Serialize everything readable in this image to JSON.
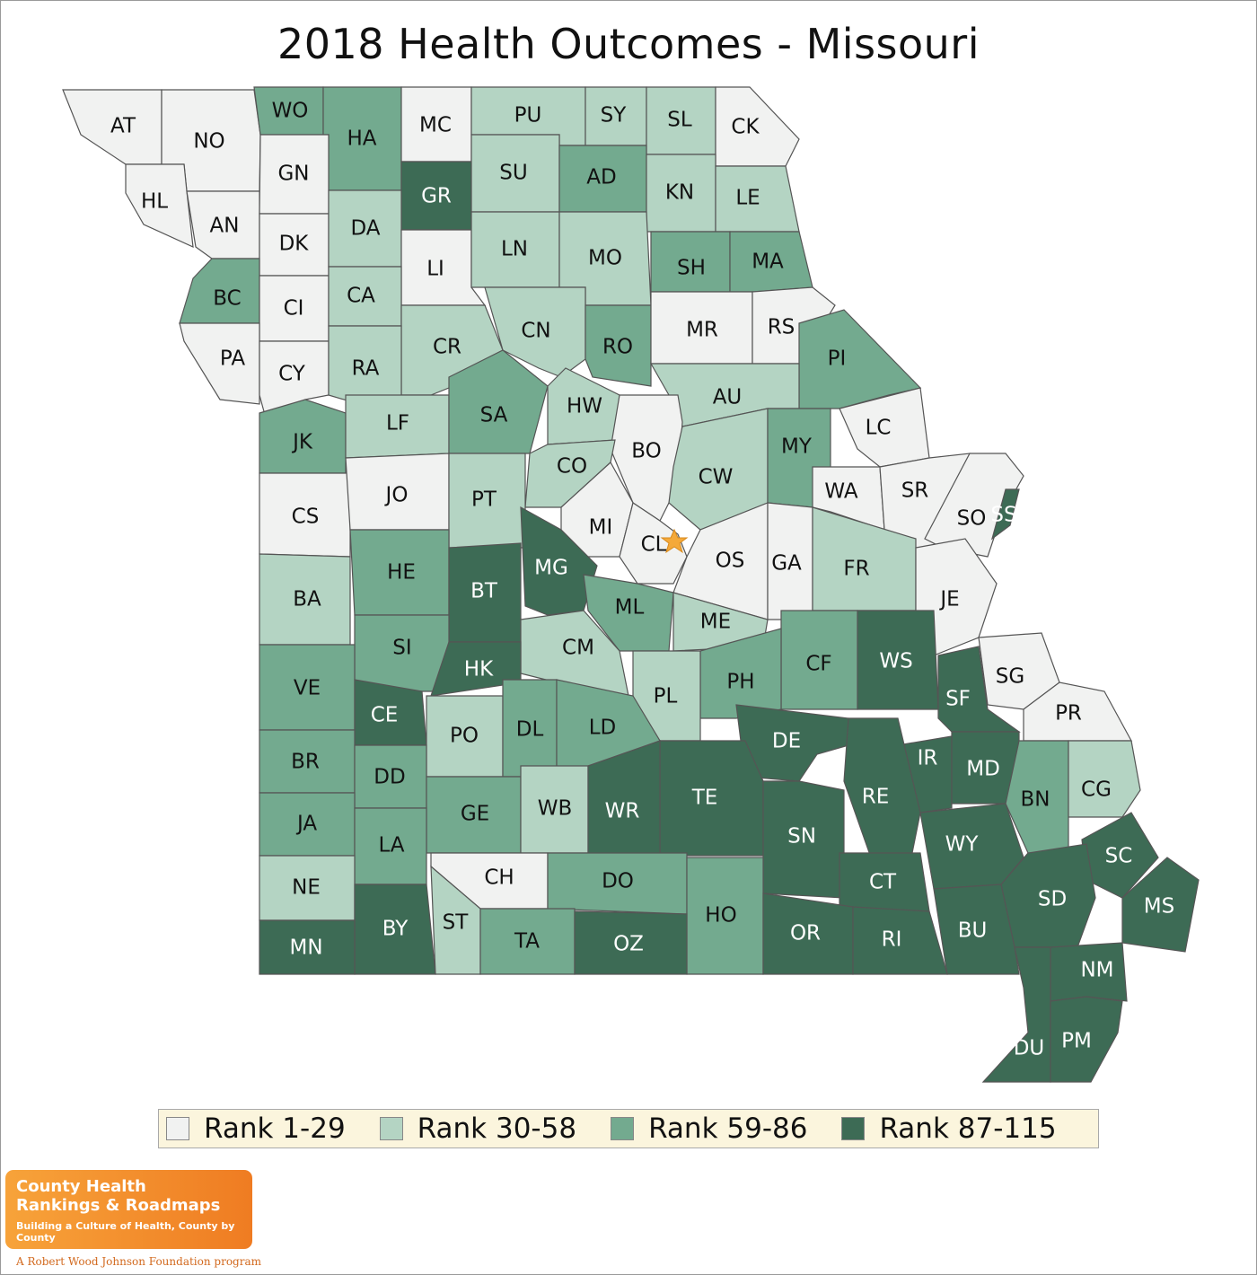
{
  "title": "2018 Health Outcomes - Missouri",
  "legend": [
    {
      "label": "Rank 1-29",
      "color": "#f1f2f1"
    },
    {
      "label": "Rank 30-58",
      "color": "#b4d4c3"
    },
    {
      "label": "Rank 59-86",
      "color": "#73aa8f"
    },
    {
      "label": "Rank 87-115",
      "color": "#3d6b55"
    }
  ],
  "star": {
    "marker": "state capital star",
    "color": "#f4a93a",
    "county": "CL"
  },
  "logo": {
    "line1": "County Health",
    "line2": "Rankings & Roadmaps",
    "tagline": "Building a Culture of Health, County by County",
    "footer": "A Robert Wood Johnson Foundation program"
  },
  "counties": [
    {
      "code": "AT",
      "rank_group": 1
    },
    {
      "code": "NO",
      "rank_group": 1
    },
    {
      "code": "WO",
      "rank_group": 3
    },
    {
      "code": "HA",
      "rank_group": 3
    },
    {
      "code": "MC",
      "rank_group": 1
    },
    {
      "code": "PU",
      "rank_group": 2
    },
    {
      "code": "SY",
      "rank_group": 2
    },
    {
      "code": "SL",
      "rank_group": 2
    },
    {
      "code": "CK",
      "rank_group": 1
    },
    {
      "code": "HL",
      "rank_group": 1
    },
    {
      "code": "AN",
      "rank_group": 1
    },
    {
      "code": "GN",
      "rank_group": 1
    },
    {
      "code": "GR",
      "rank_group": 4
    },
    {
      "code": "SU",
      "rank_group": 2
    },
    {
      "code": "AD",
      "rank_group": 3
    },
    {
      "code": "KN",
      "rank_group": 2
    },
    {
      "code": "LE",
      "rank_group": 2
    },
    {
      "code": "DK",
      "rank_group": 1
    },
    {
      "code": "DA",
      "rank_group": 2
    },
    {
      "code": "LI",
      "rank_group": 1
    },
    {
      "code": "LN",
      "rank_group": 2
    },
    {
      "code": "MO",
      "rank_group": 2
    },
    {
      "code": "SH",
      "rank_group": 3
    },
    {
      "code": "MA",
      "rank_group": 3
    },
    {
      "code": "BC",
      "rank_group": 3
    },
    {
      "code": "CI",
      "rank_group": 1
    },
    {
      "code": "CA",
      "rank_group": 2
    },
    {
      "code": "CR",
      "rank_group": 2
    },
    {
      "code": "CN",
      "rank_group": 2
    },
    {
      "code": "RO",
      "rank_group": 3
    },
    {
      "code": "MR",
      "rank_group": 1
    },
    {
      "code": "RS",
      "rank_group": 1
    },
    {
      "code": "PA",
      "rank_group": 1
    },
    {
      "code": "CY",
      "rank_group": 1
    },
    {
      "code": "RA",
      "rank_group": 2
    },
    {
      "code": "PI",
      "rank_group": 3
    },
    {
      "code": "JK",
      "rank_group": 3
    },
    {
      "code": "LF",
      "rank_group": 2
    },
    {
      "code": "SA",
      "rank_group": 3
    },
    {
      "code": "HW",
      "rank_group": 2
    },
    {
      "code": "AU",
      "rank_group": 2
    },
    {
      "code": "LC",
      "rank_group": 1
    },
    {
      "code": "BO",
      "rank_group": 1
    },
    {
      "code": "CW",
      "rank_group": 2
    },
    {
      "code": "MY",
      "rank_group": 3
    },
    {
      "code": "CO",
      "rank_group": 2
    },
    {
      "code": "CS",
      "rank_group": 1
    },
    {
      "code": "JO",
      "rank_group": 1
    },
    {
      "code": "PT",
      "rank_group": 2
    },
    {
      "code": "WA",
      "rank_group": 1
    },
    {
      "code": "SR",
      "rank_group": 1
    },
    {
      "code": "SO",
      "rank_group": 1
    },
    {
      "code": "SS",
      "rank_group": 4
    },
    {
      "code": "MI",
      "rank_group": 1
    },
    {
      "code": "CL",
      "rank_group": 1
    },
    {
      "code": "OS",
      "rank_group": 1
    },
    {
      "code": "GA",
      "rank_group": 1
    },
    {
      "code": "FR",
      "rank_group": 2
    },
    {
      "code": "BA",
      "rank_group": 2
    },
    {
      "code": "HE",
      "rank_group": 3
    },
    {
      "code": "BT",
      "rank_group": 4
    },
    {
      "code": "MG",
      "rank_group": 4
    },
    {
      "code": "JE",
      "rank_group": 1
    },
    {
      "code": "ML",
      "rank_group": 3
    },
    {
      "code": "ME",
      "rank_group": 2
    },
    {
      "code": "SI",
      "rank_group": 3
    },
    {
      "code": "CM",
      "rank_group": 2
    },
    {
      "code": "HK",
      "rank_group": 4
    },
    {
      "code": "WS",
      "rank_group": 4
    },
    {
      "code": "CF",
      "rank_group": 3
    },
    {
      "code": "SG",
      "rank_group": 1
    },
    {
      "code": "VE",
      "rank_group": 3
    },
    {
      "code": "PH",
      "rank_group": 3
    },
    {
      "code": "PL",
      "rank_group": 2
    },
    {
      "code": "SF",
      "rank_group": 4
    },
    {
      "code": "PR",
      "rank_group": 1
    },
    {
      "code": "CE",
      "rank_group": 4
    },
    {
      "code": "PO",
      "rank_group": 2
    },
    {
      "code": "DL",
      "rank_group": 3
    },
    {
      "code": "LD",
      "rank_group": 3
    },
    {
      "code": "DE",
      "rank_group": 4
    },
    {
      "code": "IR",
      "rank_group": 4
    },
    {
      "code": "MD",
      "rank_group": 4
    },
    {
      "code": "BR",
      "rank_group": 3
    },
    {
      "code": "DD",
      "rank_group": 3
    },
    {
      "code": "TE",
      "rank_group": 4
    },
    {
      "code": "RE",
      "rank_group": 4
    },
    {
      "code": "BN",
      "rank_group": 3
    },
    {
      "code": "CG",
      "rank_group": 2
    },
    {
      "code": "JA",
      "rank_group": 3
    },
    {
      "code": "GE",
      "rank_group": 3
    },
    {
      "code": "WB",
      "rank_group": 2
    },
    {
      "code": "WR",
      "rank_group": 4
    },
    {
      "code": "SN",
      "rank_group": 4
    },
    {
      "code": "WY",
      "rank_group": 4
    },
    {
      "code": "SC",
      "rank_group": 4
    },
    {
      "code": "LA",
      "rank_group": 3
    },
    {
      "code": "CH",
      "rank_group": 1
    },
    {
      "code": "DO",
      "rank_group": 3
    },
    {
      "code": "CT",
      "rank_group": 4
    },
    {
      "code": "NE",
      "rank_group": 2
    },
    {
      "code": "SD",
      "rank_group": 4
    },
    {
      "code": "MS",
      "rank_group": 4
    },
    {
      "code": "BY",
      "rank_group": 4
    },
    {
      "code": "ST",
      "rank_group": 2
    },
    {
      "code": "HO",
      "rank_group": 3
    },
    {
      "code": "OR",
      "rank_group": 4
    },
    {
      "code": "RI",
      "rank_group": 4
    },
    {
      "code": "BU",
      "rank_group": 4
    },
    {
      "code": "MN",
      "rank_group": 4
    },
    {
      "code": "TA",
      "rank_group": 3
    },
    {
      "code": "OZ",
      "rank_group": 4
    },
    {
      "code": "NM",
      "rank_group": 4
    },
    {
      "code": "DU",
      "rank_group": 4
    },
    {
      "code": "PM",
      "rank_group": 4
    }
  ]
}
